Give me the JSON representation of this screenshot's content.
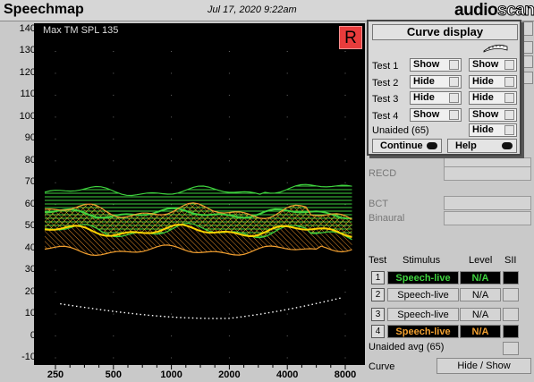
{
  "header": {
    "app_title": "Speechmap",
    "datetime": "Jul 17, 2020 9:22am",
    "brand_a": "audio",
    "brand_b": "scan"
  },
  "plot": {
    "max_spl_label": "Max TM SPL 135",
    "r_badge": "R",
    "y_ticks": [
      "140",
      "130",
      "120",
      "110",
      "100",
      "90",
      "80",
      "70",
      "60",
      "50",
      "40",
      "30",
      "20",
      "10",
      "0",
      "-10"
    ],
    "x_ticks": [
      "250",
      "500",
      "1000",
      "2000",
      "4000",
      "8000"
    ]
  },
  "side": {
    "recd_label": "RECD",
    "bct_label": "BCT",
    "binaural_label": "Binaural"
  },
  "test_table": {
    "headers": [
      "Test",
      "Stimulus",
      "Level",
      "SII"
    ],
    "rows": [
      {
        "num": "1",
        "stimulus": "Speech-live",
        "level": "N/A",
        "color": "#3ed23e"
      },
      {
        "num": "2",
        "stimulus": "Speech-live",
        "level": "N/A",
        "color": ""
      },
      {
        "num": "3",
        "stimulus": "Speech-live",
        "level": "N/A",
        "color": ""
      },
      {
        "num": "4",
        "stimulus": "Speech-live",
        "level": "N/A",
        "color": "#f2a030"
      }
    ],
    "unaided_label": "Unaided avg (65)",
    "curve_label": "Curve",
    "curve_button": "Hide / Show"
  },
  "dialog": {
    "title": "Curve display",
    "rows": [
      {
        "label": "Test 1",
        "left": "Show",
        "right": "Show"
      },
      {
        "label": "Test 2",
        "left": "Hide",
        "right": "Hide"
      },
      {
        "label": "Test 3",
        "left": "Hide",
        "right": "Hide"
      },
      {
        "label": "Test 4",
        "left": "Show",
        "right": "Show"
      }
    ],
    "unaided_label": "Unaided (65)",
    "unaided_value": "Hide",
    "continue_label": "Continue",
    "help_label": "Help"
  },
  "colors": {
    "test1": "#3ed23e",
    "test4": "#f2a030",
    "test4_mid": "#ffd400",
    "unaided": "#ffffff"
  }
}
